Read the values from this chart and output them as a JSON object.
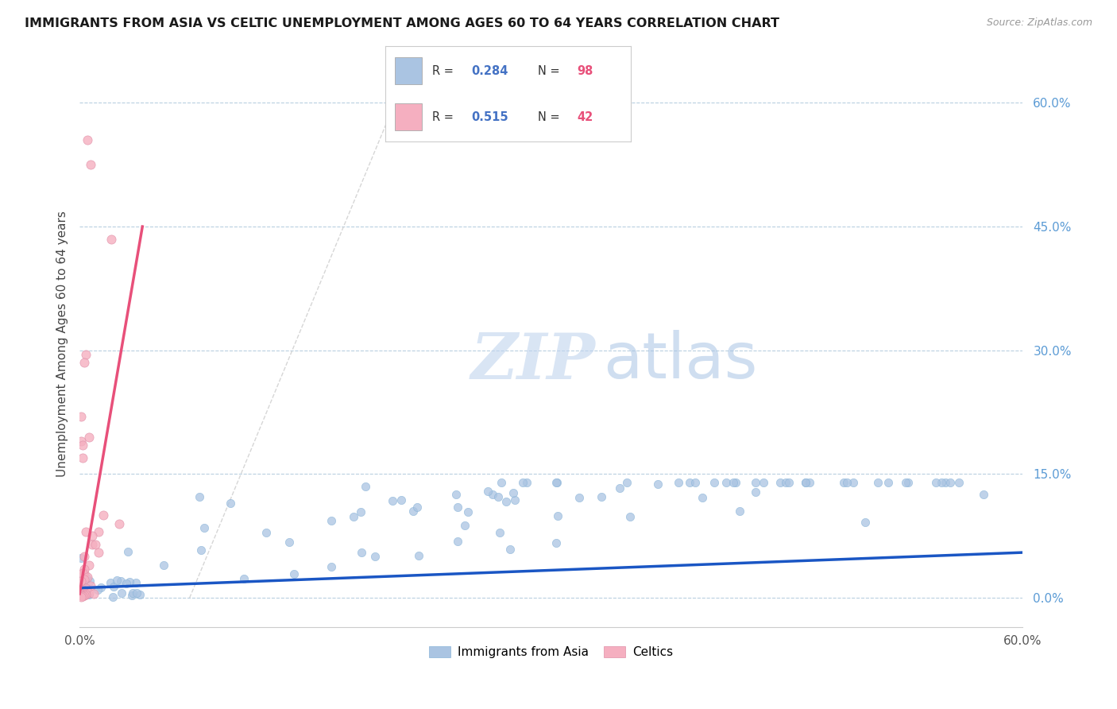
{
  "title": "IMMIGRANTS FROM ASIA VS CELTIC UNEMPLOYMENT AMONG AGES 60 TO 64 YEARS CORRELATION CHART",
  "source": "Source: ZipAtlas.com",
  "ylabel": "Unemployment Among Ages 60 to 64 years",
  "ytick_vals": [
    0.6,
    0.45,
    0.3,
    0.15,
    0.0
  ],
  "xlim": [
    0.0,
    0.6
  ],
  "ylim": [
    -0.035,
    0.65
  ],
  "asia_color": "#aac4e2",
  "celtic_color": "#f5afc0",
  "asia_line_color": "#1a56c4",
  "celtic_line_color": "#e8507a",
  "asia_R": 0.284,
  "asia_N": 98,
  "celtic_R": 0.515,
  "celtic_N": 42,
  "background_color": "#ffffff",
  "grid_color": "#b8cfe0",
  "ref_line_color": "#cccccc",
  "legend_R1": "0.284",
  "legend_N1": "98",
  "legend_R2": "0.515",
  "legend_N2": "42",
  "number_color": "#4472c4",
  "N_color": "#e8507a",
  "watermark_zip_color": "#c5d8f0",
  "watermark_atlas_color": "#b0c8e8"
}
